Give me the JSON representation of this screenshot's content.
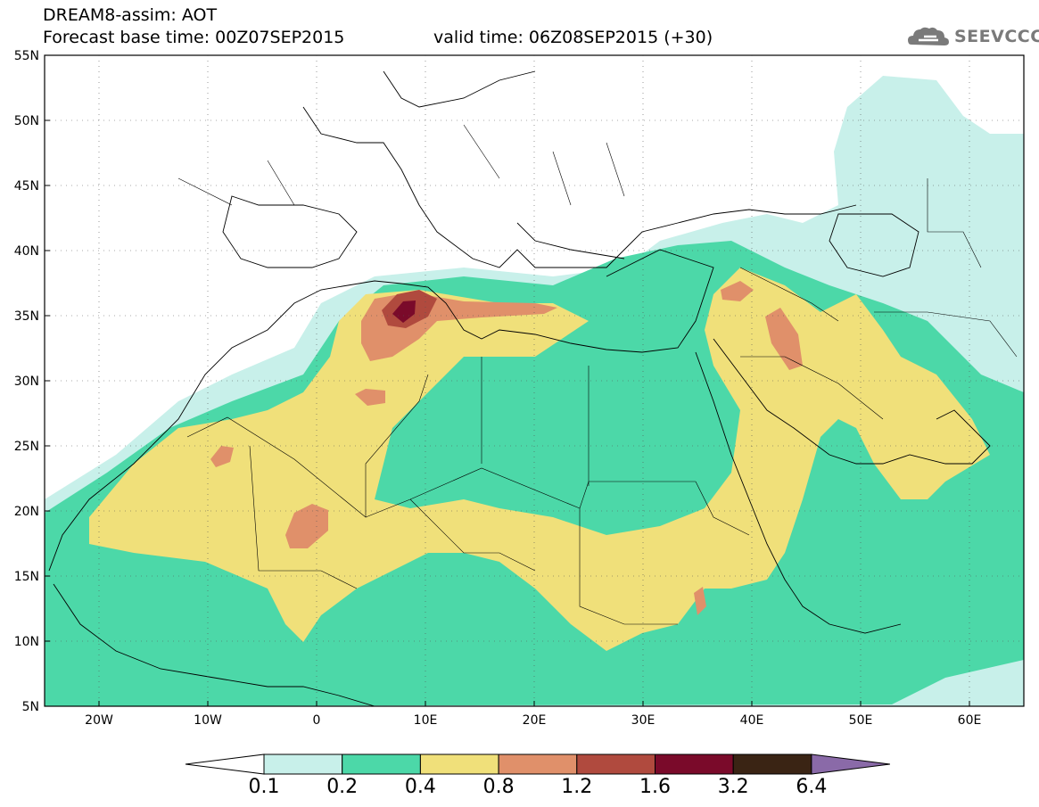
{
  "title_line1": "DREAM8-assim: AOT",
  "title_line2": "Forecast base time: 00Z07SEP2015",
  "title_line3": "valid time: 06Z08SEP2015 (+30)",
  "logo_text": "SEEVCCC",
  "map": {
    "lon_range": [
      -25,
      65
    ],
    "lat_range": [
      5,
      55
    ],
    "lat_labels": [
      "5N",
      "10N",
      "15N",
      "20N",
      "25N",
      "30N",
      "35N",
      "40N",
      "45N",
      "50N",
      "55N"
    ],
    "lon_labels": [
      "20W",
      "10W",
      "0",
      "10E",
      "20E",
      "30E",
      "40E",
      "50E",
      "60E"
    ]
  },
  "colorbar": {
    "labels": [
      "0.1",
      "0.2",
      "0.4",
      "0.8",
      "1.2",
      "1.6",
      "3.2",
      "6.4"
    ],
    "colors": [
      "#c8f0ea",
      "#4cd8a8",
      "#f0e07a",
      "#e0906a",
      "#b04a3e",
      "#7a0a2a",
      "#3a2414",
      "#8a6aa8"
    ]
  },
  "colors": {
    "c01": "#c8f0ea",
    "c02": "#4cd8a8",
    "c04": "#f0e07a",
    "c08": "#e0906a",
    "c12": "#b04a3e",
    "c16": "#7a0a2a"
  }
}
